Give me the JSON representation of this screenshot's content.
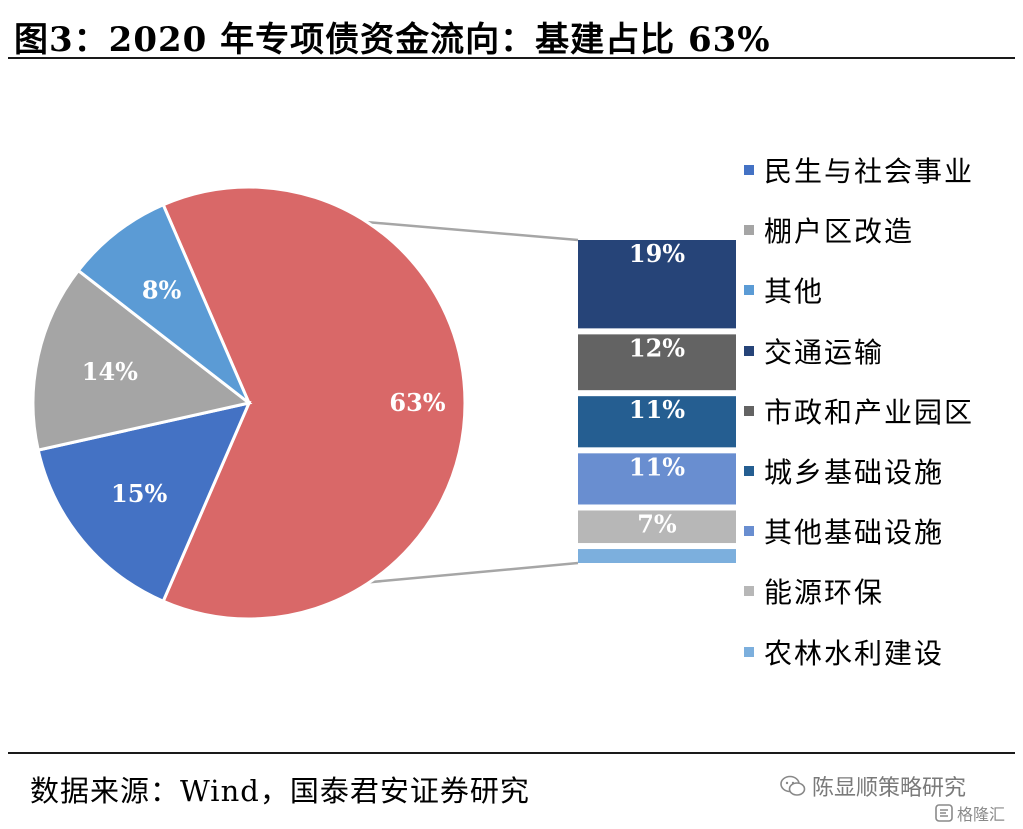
{
  "title": "图3：2020 年专项债资金流向：基建占比 63%",
  "source": "数据来源：Wind，国泰君安证券研究",
  "watermark": "陈显顺策略研究",
  "brand": "格隆汇",
  "colors": {
    "pie_red": "#d96868",
    "blue": "#4472c4",
    "gray": "#a5a5a5",
    "light_blue": "#5b9bd5",
    "navy": "#264478",
    "dark_gray": "#636363",
    "steel_blue": "#255e91",
    "periwinkle": "#698ed0",
    "silver": "#b7b7b7",
    "sky": "#7cafdd",
    "connector": "#a6a6a6"
  },
  "icons": {
    "watermark": "wechat-icon",
    "brand": "gelonghui-logo-icon"
  },
  "legend": [
    {
      "label": "民生与社会事业",
      "color": "#4472c4"
    },
    {
      "label": "棚户区改造",
      "color": "#a5a5a5"
    },
    {
      "label": "其他",
      "color": "#5b9bd5"
    },
    {
      "label": "交通运输",
      "color": "#264478"
    },
    {
      "label": "市政和产业园区",
      "color": "#636363"
    },
    {
      "label": "城乡基础设施",
      "color": "#255e91"
    },
    {
      "label": "其他基础设施",
      "color": "#698ed0"
    },
    {
      "label": "能源环保",
      "color": "#b7b7b7"
    },
    {
      "label": "农林水利建设",
      "color": "#7cafdd"
    }
  ],
  "chart_data": {
    "type": "bar-of-pie",
    "pie": {
      "slices": [
        {
          "name": "基建",
          "value": 63,
          "label": "63%",
          "color": "#d96868"
        },
        {
          "name": "民生与社会事业",
          "value": 15,
          "label": "15%",
          "color": "#4472c4"
        },
        {
          "name": "棚户区改造",
          "value": 14,
          "label": "14%",
          "color": "#a5a5a5"
        },
        {
          "name": "其他",
          "value": 8,
          "label": "8%",
          "color": "#5b9bd5"
        }
      ]
    },
    "bar": {
      "segments": [
        {
          "name": "交通运输",
          "value": 19,
          "label": "19%",
          "color": "#264478"
        },
        {
          "name": "市政和产业园区",
          "value": 12,
          "label": "12%",
          "color": "#636363"
        },
        {
          "name": "城乡基础设施",
          "value": 11,
          "label": "11%",
          "color": "#255e91"
        },
        {
          "name": "其他基础设施",
          "value": 11,
          "label": "11%",
          "color": "#698ed0"
        },
        {
          "name": "能源环保",
          "value": 7,
          "label": "7%",
          "color": "#b7b7b7"
        },
        {
          "name": "农林水利建设",
          "value": 3,
          "label": "",
          "color": "#7cafdd"
        }
      ]
    }
  }
}
